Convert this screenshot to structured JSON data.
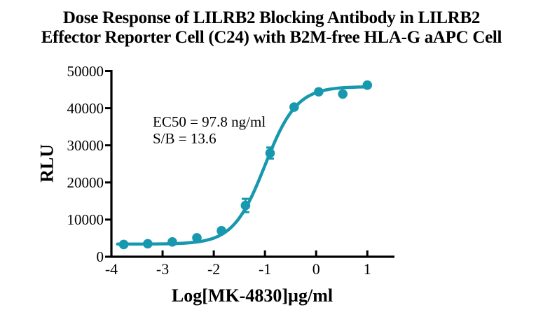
{
  "title": {
    "line1": "Dose Response of LILRB2 Blocking Antibody in LILRB2",
    "line2": "Effector Reporter Cell (C24) with B2M-free HLA-G aAPC Cell"
  },
  "annotation": {
    "ec50": "EC50 = 97.8 ng/ml",
    "sb": "S/B = 13.6"
  },
  "colors": {
    "curve": "#1798AE",
    "axis": "#000000",
    "text": "#000000"
  },
  "chart_data": {
    "type": "scatter",
    "title": "Dose Response of LILRB2 Blocking Antibody in LILRB2 Effector Reporter Cell (C24) with B2M-free HLA-G aAPC Cell",
    "xlabel": "Log[MK-4830]µg/ml",
    "ylabel": "RLU",
    "x": [
      -3.76,
      -3.29,
      -2.81,
      -2.33,
      -1.85,
      -1.38,
      -0.9,
      -0.43,
      0.05,
      0.52,
      1.0
    ],
    "y": [
      3300,
      3500,
      4000,
      5100,
      7000,
      13800,
      27900,
      40300,
      44400,
      43800,
      46200
    ],
    "y_err": [
      0,
      0,
      0,
      0,
      0,
      1800,
      1500,
      0,
      0,
      0,
      0
    ],
    "x_ticks": [
      -4,
      -3,
      -2,
      -1,
      0,
      1
    ],
    "y_ticks": [
      0,
      10000,
      20000,
      30000,
      40000,
      50000
    ],
    "xlim": [
      -4,
      1.53
    ],
    "ylim": [
      0,
      50000
    ],
    "fit": {
      "model": "4PL sigmoid",
      "bottom": 3400,
      "top": 45800,
      "log_ec50": -1.0,
      "hill": 1.4,
      "x_start": -3.88,
      "x_end": 1.0
    },
    "annotations": [
      "EC50 = 97.8 ng/ml",
      "S/B = 13.6"
    ],
    "legend": null,
    "grid": false
  }
}
